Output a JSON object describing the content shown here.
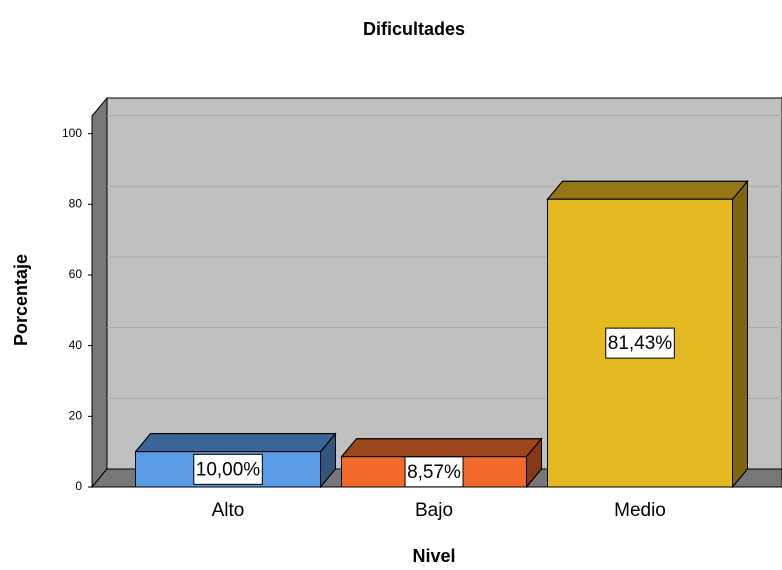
{
  "chart_data": {
    "type": "bar3d",
    "title": "Dificultades",
    "x_label": "Nivel",
    "y_label": "Porcentaje",
    "categories": [
      "Alto",
      "Bajo",
      "Medio"
    ],
    "values": [
      10,
      8.57,
      81.43
    ],
    "value_labels": [
      "10,00%",
      "8,57%",
      "81,43%"
    ],
    "colors": [
      "#5a9be6",
      "#f26a2b",
      "#e4b921"
    ],
    "ylim": [
      0,
      105
    ],
    "yticks": [
      0,
      20,
      40,
      60,
      80,
      100
    ],
    "grid": true
  }
}
